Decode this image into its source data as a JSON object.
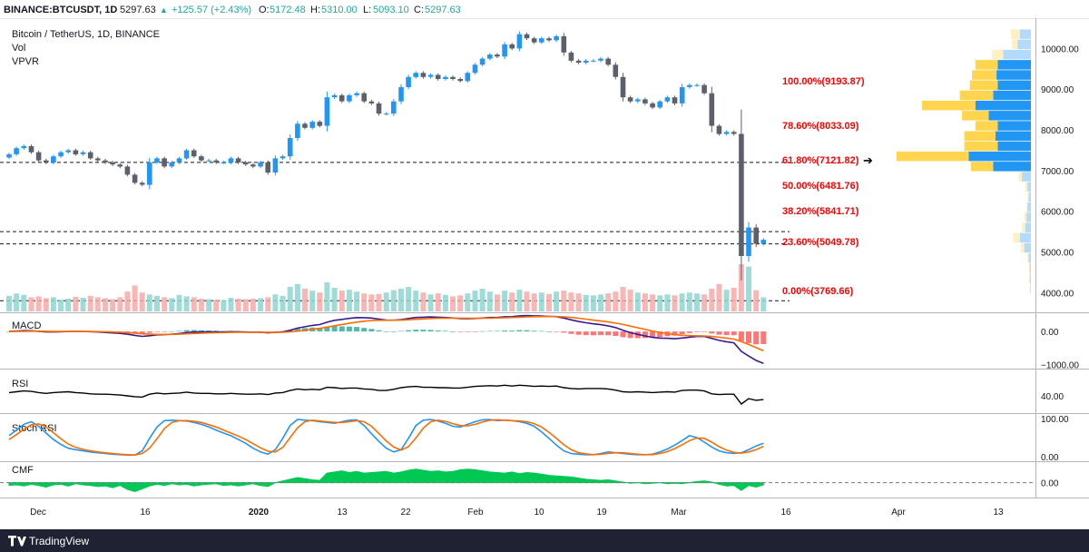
{
  "header": {
    "symbol": "BINANCE:BTCUSDT, 1D",
    "last": "5297.63",
    "change": "+125.57 (+2.43%)",
    "o_label": "O:",
    "o_value": "5172.48",
    "h_label": "H:",
    "h_value": "5310.00",
    "l_label": "L:",
    "l_value": "5093.10",
    "c_label": "C:",
    "c_value": "5297.63"
  },
  "legend": {
    "title": "Bitcoin / TetherUS, 1D, BINANCE",
    "vol": "Vol",
    "vpvr": "VPVR"
  },
  "panes": {
    "macd": "MACD",
    "rsi": "RSI",
    "stoch": "Stoch RSI",
    "cmf": "CMF"
  },
  "footer": {
    "brand": "TradingView"
  },
  "colors": {
    "up": "#2196f3",
    "down": "#5d606b",
    "fib": "#ff0000",
    "vol_up": "#8ed6d1",
    "vol_down": "#f7a9a7",
    "macd_line": "#3b1a8f",
    "signal_line": "#ff6d00",
    "stoch_k": "#2196f3",
    "stoch_d": "#ff6d00",
    "cmf_fill": "#00c853",
    "vpvr_up": "#2196f3",
    "vpvr_down": "#ffd54f"
  },
  "chart_data": {
    "type": "candlestick",
    "price_axis": {
      "ticks": [
        4000,
        5000,
        6000,
        7000,
        8000,
        9000,
        10000
      ],
      "tick_labels": [
        "4000.00",
        "5000.00",
        "6000.00",
        "7000.00",
        "8000.00",
        "9000.00",
        "10000.00"
      ],
      "ylim": [
        3540,
        10700
      ]
    },
    "time_axis": {
      "labels": [
        "Dec",
        "16",
        "2020",
        "13",
        "22",
        "Feb",
        "10",
        "19",
        "Mar",
        "16",
        "Apr",
        "13"
      ]
    },
    "fib_levels": [
      {
        "label": "100.00%(9193.87)",
        "value": 9193.87
      },
      {
        "label": "78.60%(8033.09)",
        "value": 8033.09
      },
      {
        "label": "61.80%(7121.82)",
        "value": 7121.82
      },
      {
        "label": "50.00%(6481.76)",
        "value": 6481.76
      },
      {
        "label": "38.20%(5841.71)",
        "value": 5841.71
      },
      {
        "label": "23.60%(5049.78)",
        "value": 5049.78
      },
      {
        "label": "0.00%(3769.66)",
        "value": 3769.66
      }
    ],
    "dashed_levels": [
      7200,
      5500,
      5200,
      3800
    ],
    "closes": [
      7400,
      7550,
      7600,
      7450,
      7250,
      7200,
      7350,
      7450,
      7500,
      7400,
      7450,
      7300,
      7250,
      7200,
      7150,
      7100,
      6900,
      6700,
      6650,
      7200,
      7300,
      7100,
      7200,
      7300,
      7500,
      7350,
      7250,
      7250,
      7200,
      7200,
      7300,
      7200,
      7150,
      7100,
      7200,
      6950,
      7300,
      7350,
      7800,
      8150,
      8050,
      8200,
      8100,
      8800,
      8850,
      8700,
      8850,
      8900,
      8700,
      8650,
      8400,
      8400,
      8700,
      9050,
      9300,
      9400,
      9300,
      9350,
      9250,
      9300,
      9250,
      9200,
      9400,
      9600,
      9750,
      9850,
      9800,
      10100,
      10000,
      10350,
      10250,
      10150,
      10250,
      10200,
      10300,
      9900,
      9700,
      9650,
      9700,
      9700,
      9750,
      9600,
      9300,
      8800,
      8700,
      8750,
      8650,
      8550,
      8700,
      8800,
      8650,
      9050,
      9100,
      9100,
      8900,
      8100,
      7900,
      7950,
      7900,
      4900,
      5600,
      5200,
      5300
    ],
    "volume_pane": {
      "note": "volume histogram, no numeric axis",
      "values": [
        0.33,
        0.38,
        0.35,
        0.3,
        0.32,
        0.28,
        0.3,
        0.25,
        0.27,
        0.31,
        0.29,
        0.33,
        0.3,
        0.28,
        0.26,
        0.3,
        0.42,
        0.55,
        0.4,
        0.36,
        0.33,
        0.3,
        0.28,
        0.35,
        0.32,
        0.3,
        0.27,
        0.26,
        0.25,
        0.24,
        0.29,
        0.27,
        0.26,
        0.27,
        0.28,
        0.3,
        0.36,
        0.33,
        0.52,
        0.58,
        0.48,
        0.44,
        0.4,
        0.62,
        0.5,
        0.44,
        0.46,
        0.42,
        0.38,
        0.36,
        0.37,
        0.4,
        0.45,
        0.48,
        0.52,
        0.44,
        0.4,
        0.36,
        0.38,
        0.35,
        0.32,
        0.34,
        0.38,
        0.44,
        0.48,
        0.42,
        0.36,
        0.44,
        0.4,
        0.46,
        0.42,
        0.38,
        0.4,
        0.37,
        0.42,
        0.44,
        0.4,
        0.38,
        0.35,
        0.34,
        0.36,
        0.38,
        0.42,
        0.52,
        0.46,
        0.4,
        0.38,
        0.36,
        0.34,
        0.36,
        0.34,
        0.38,
        0.4,
        0.38,
        0.36,
        0.48,
        0.58,
        0.46,
        0.5,
        1.0,
        0.95,
        0.45,
        0.3
      ]
    },
    "vpvr_profile": {
      "price_bins": [
        10350,
        10100,
        9850,
        9600,
        9350,
        9100,
        8850,
        8600,
        8350,
        8100,
        7850,
        7600,
        7350,
        7100,
        6850,
        6600,
        6350,
        6100,
        5850,
        5600,
        5350,
        5100,
        4850,
        4600,
        4350,
        4100
      ],
      "up_volume": [
        0.1,
        0.12,
        0.25,
        0.3,
        0.31,
        0.3,
        0.34,
        0.5,
        0.38,
        0.3,
        0.32,
        0.3,
        0.56,
        0.34,
        0.08,
        0.03,
        0.02,
        0.03,
        0.04,
        0.05,
        0.1,
        0.06,
        0.02,
        0.01,
        0.01,
        0.005
      ],
      "down_volume": [
        0.08,
        0.05,
        0.1,
        0.2,
        0.22,
        0.25,
        0.3,
        0.48,
        0.24,
        0.2,
        0.28,
        0.3,
        0.65,
        0.2,
        0.03,
        0.02,
        0.01,
        0.01,
        0.02,
        0.03,
        0.06,
        0.03,
        0.01,
        0.01,
        0.005,
        0.005
      ]
    },
    "macd_pane": {
      "ticks": [
        0,
        -1000
      ],
      "tick_labels": [
        "0.00",
        "−1000.00"
      ],
      "ylim": [
        -1100,
        500
      ]
    },
    "rsi_pane": {
      "ticks": [
        40
      ],
      "tick_labels": [
        "40.00"
      ],
      "ylim": [
        0,
        100
      ],
      "values": [
        48,
        50,
        52,
        51,
        48,
        46,
        48,
        49,
        50,
        48,
        47,
        45,
        44,
        44,
        43,
        42,
        40,
        38,
        37,
        44,
        47,
        45,
        46,
        47,
        49,
        47,
        46,
        46,
        45,
        45,
        46,
        45,
        44,
        44,
        45,
        43,
        47,
        48,
        53,
        57,
        55,
        56,
        55,
        61,
        60,
        58,
        59,
        59,
        57,
        56,
        53,
        53,
        56,
        60,
        62,
        63,
        61,
        61,
        60,
        60,
        59,
        59,
        61,
        63,
        64,
        65,
        64,
        66,
        64,
        66,
        65,
        63,
        64,
        63,
        64,
        60,
        58,
        57,
        58,
        58,
        58,
        57,
        54,
        50,
        49,
        50,
        49,
        48,
        49,
        50,
        49,
        53,
        54,
        54,
        52,
        45,
        43,
        44,
        44,
        20,
        33,
        29,
        31
      ]
    },
    "stoch_pane": {
      "ticks": [
        100,
        0
      ],
      "tick_labels": [
        "100.00",
        "0.00"
      ],
      "ylim": [
        -10,
        110
      ],
      "k": [
        55,
        70,
        85,
        92,
        80,
        62,
        45,
        32,
        22,
        18,
        15,
        12,
        10,
        8,
        6,
        5,
        4,
        4,
        15,
        48,
        78,
        95,
        96,
        95,
        94,
        90,
        85,
        78,
        70,
        62,
        55,
        45,
        35,
        22,
        12,
        6,
        18,
        48,
        82,
        98,
        96,
        95,
        92,
        90,
        88,
        92,
        96,
        97,
        82,
        60,
        40,
        22,
        12,
        18,
        48,
        82,
        96,
        98,
        94,
        88,
        80,
        78,
        85,
        92,
        97,
        98,
        95,
        96,
        95,
        92,
        88,
        80,
        65,
        48,
        30,
        15,
        8,
        6,
        5,
        5,
        8,
        12,
        10,
        8,
        6,
        5,
        5,
        6,
        12,
        20,
        30,
        42,
        55,
        50,
        38,
        25,
        15,
        10,
        8,
        10,
        18,
        28,
        35
      ],
      "d": [
        45,
        58,
        72,
        84,
        86,
        78,
        63,
        47,
        33,
        24,
        19,
        15,
        12,
        10,
        8,
        6,
        5,
        4,
        8,
        22,
        47,
        74,
        90,
        95,
        95,
        93,
        90,
        84,
        78,
        70,
        62,
        54,
        45,
        34,
        23,
        14,
        12,
        24,
        50,
        76,
        92,
        96,
        94,
        92,
        90,
        90,
        92,
        95,
        92,
        80,
        61,
        41,
        25,
        17,
        26,
        49,
        75,
        92,
        96,
        93,
        87,
        82,
        81,
        85,
        91,
        96,
        97,
        96,
        95,
        94,
        92,
        87,
        78,
        64,
        48,
        31,
        18,
        10,
        7,
        5,
        6,
        8,
        10,
        10,
        8,
        6,
        5,
        5,
        8,
        13,
        21,
        31,
        42,
        49,
        48,
        38,
        26,
        17,
        11,
        9,
        12,
        18,
        27
      ]
    },
    "cmf_pane": {
      "ticks": [
        0
      ],
      "tick_labels": [
        "0.00"
      ],
      "ylim": [
        -0.25,
        0.35
      ],
      "values": [
        -0.05,
        -0.04,
        -0.06,
        -0.03,
        -0.05,
        -0.08,
        -0.04,
        -0.03,
        -0.06,
        -0.02,
        -0.04,
        -0.05,
        -0.07,
        -0.06,
        -0.09,
        -0.05,
        -0.12,
        -0.16,
        -0.11,
        -0.06,
        -0.03,
        -0.05,
        -0.02,
        -0.04,
        -0.03,
        -0.06,
        -0.04,
        -0.03,
        -0.02,
        -0.05,
        -0.04,
        -0.06,
        -0.04,
        -0.02,
        -0.05,
        -0.07,
        0.0,
        0.03,
        0.06,
        0.09,
        0.07,
        0.05,
        0.04,
        0.17,
        0.19,
        0.21,
        0.18,
        0.2,
        0.17,
        0.18,
        0.19,
        0.2,
        0.17,
        0.19,
        0.22,
        0.24,
        0.22,
        0.2,
        0.21,
        0.19,
        0.2,
        0.23,
        0.24,
        0.23,
        0.21,
        0.19,
        0.18,
        0.17,
        0.19,
        0.16,
        0.18,
        0.17,
        0.15,
        0.13,
        0.12,
        0.11,
        0.1,
        0.08,
        0.06,
        0.05,
        0.04,
        0.05,
        0.03,
        0.01,
        -0.01,
        0.0,
        -0.02,
        -0.01,
        0.0,
        -0.02,
        -0.01,
        -0.02,
        0.0,
        0.02,
        0.03,
        0.01,
        -0.03,
        -0.06,
        -0.05,
        -0.14,
        -0.05,
        -0.08,
        -0.04
      ]
    }
  }
}
